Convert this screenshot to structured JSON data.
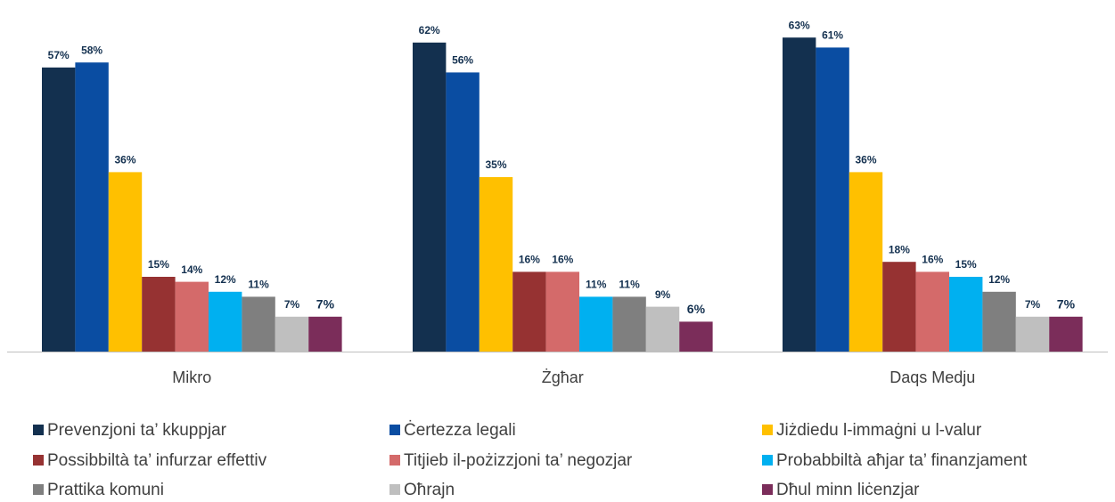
{
  "chart_data": {
    "type": "bar",
    "categories": [
      "Mikro",
      "Żgħar",
      "Daqs Medju"
    ],
    "series": [
      {
        "name": "Prevenzjoni ta’ kkuppjar",
        "color": "#13304f",
        "values": [
          57,
          62,
          63
        ],
        "value_labels": [
          "57%",
          "62%",
          "63%"
        ]
      },
      {
        "name": "Ċertezza legali",
        "color": "#0a4da2",
        "values": [
          58,
          56,
          61
        ],
        "value_labels": [
          "58%",
          "56%",
          "61%"
        ]
      },
      {
        "name": "Jiżdiedu l-immaġni u l-valur",
        "color": "#ffc000",
        "values": [
          36,
          35,
          36
        ],
        "value_labels": [
          "36%",
          "35%",
          "36%"
        ]
      },
      {
        "name": "Possibbiltà ta’ infurzar effettiv",
        "color": "#963232",
        "values": [
          15,
          16,
          18
        ],
        "value_labels": [
          "15%",
          "16%",
          "18%"
        ]
      },
      {
        "name": "Titjieb il-pożizzjoni ta’ negozjar",
        "color": "#d46a6a",
        "values": [
          14,
          16,
          16
        ],
        "value_labels": [
          "14%",
          "16%",
          "16%"
        ]
      },
      {
        "name": "Probabbiltà aħjar ta’ finanzjament",
        "color": "#00b0f0",
        "values": [
          12,
          11,
          15
        ],
        "value_labels": [
          "12%",
          "11%",
          "15%"
        ]
      },
      {
        "name": "Prattika komuni",
        "color": "#7f7f7f",
        "values": [
          11,
          11,
          12
        ],
        "value_labels": [
          "11%",
          "11%",
          "12%"
        ]
      },
      {
        "name": "Oħrajn",
        "color": "#bfbfbf",
        "values": [
          7,
          9,
          7
        ],
        "value_labels": [
          "7%",
          "9%",
          "7%"
        ]
      },
      {
        "name": "Dħul minn liċenzjar",
        "color": "#7b2d5a",
        "values": [
          7,
          6,
          7
        ],
        "value_labels": [
          "7%",
          "6%",
          "7%"
        ]
      }
    ]
  }
}
